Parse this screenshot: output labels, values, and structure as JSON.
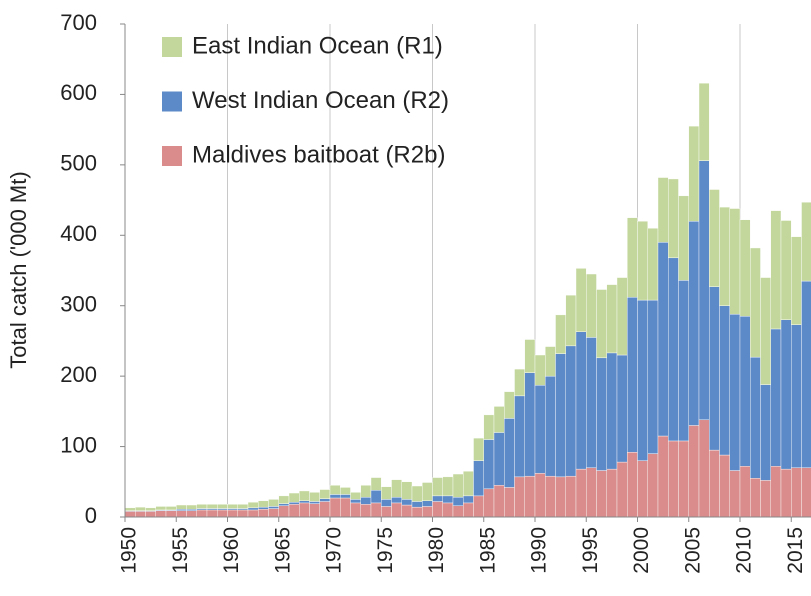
{
  "chart_data": {
    "type": "stacked_bar",
    "ylabel": "Total catch ('000 Mt)",
    "categories": [
      "1950",
      null,
      null,
      null,
      null,
      "1955",
      null,
      null,
      null,
      null,
      "1960",
      null,
      null,
      null,
      null,
      "1965",
      null,
      null,
      null,
      null,
      "1970",
      null,
      null,
      null,
      null,
      "1975",
      null,
      null,
      null,
      null,
      "1980",
      null,
      null,
      null,
      null,
      "1985",
      null,
      null,
      null,
      null,
      "1990",
      null,
      null,
      null,
      null,
      "1995",
      null,
      null,
      null,
      null,
      "2000",
      null,
      null,
      null,
      null,
      "2005",
      null,
      null,
      null,
      null,
      "2010",
      null,
      null,
      null,
      null,
      "2015",
      null
    ],
    "series": [
      {
        "name": "Maldives baitboat (R2b)",
        "color": "#d98c8b",
        "values": [
          8,
          8,
          8,
          9,
          9,
          9,
          9,
          10,
          10,
          10,
          10,
          10,
          10,
          11,
          12,
          16,
          18,
          20,
          19,
          22,
          27,
          27,
          20,
          18,
          20,
          15,
          20,
          17,
          14,
          15,
          22,
          20,
          16,
          20,
          30,
          40,
          45,
          42,
          57,
          58,
          62,
          58,
          57,
          58,
          68,
          70,
          66,
          68,
          78,
          92,
          80,
          90,
          115,
          108,
          108,
          130,
          138,
          95,
          88,
          66,
          72,
          55,
          52,
          72,
          68,
          70,
          70
        ]
      },
      {
        "name": "West Indian Ocean (R2)",
        "color": "#5c89c7",
        "values": [
          1,
          1,
          1,
          1,
          1,
          2,
          2,
          2,
          2,
          2,
          2,
          2,
          3,
          3,
          3,
          3,
          3,
          3,
          3,
          4,
          5,
          5,
          5,
          10,
          18,
          10,
          8,
          8,
          8,
          8,
          8,
          10,
          12,
          10,
          50,
          70,
          75,
          98,
          115,
          147,
          125,
          142,
          175,
          185,
          195,
          185,
          160,
          165,
          152,
          220,
          228,
          218,
          275,
          260,
          228,
          290,
          368,
          232,
          212,
          222,
          213,
          172,
          136,
          195,
          212,
          203,
          265
        ]
      },
      {
        "name": "East Indian Ocean (R1)",
        "color": "#c3d79d",
        "values": [
          4,
          5,
          4,
          5,
          5,
          6,
          6,
          6,
          6,
          6,
          6,
          6,
          8,
          9,
          10,
          11,
          13,
          14,
          13,
          13,
          13,
          10,
          10,
          17,
          18,
          18,
          25,
          25,
          22,
          26,
          26,
          27,
          33,
          35,
          32,
          35,
          37,
          38,
          38,
          47,
          43,
          42,
          55,
          72,
          90,
          90,
          97,
          97,
          110,
          113,
          112,
          102,
          92,
          112,
          120,
          135,
          110,
          138,
          140,
          150,
          137,
          155,
          152,
          168,
          141,
          125,
          112
        ]
      }
    ],
    "ylim": [
      0,
      700
    ],
    "yticks": [
      0,
      100,
      200,
      300,
      400,
      500,
      600,
      700
    ],
    "xgrid_every": 10
  }
}
